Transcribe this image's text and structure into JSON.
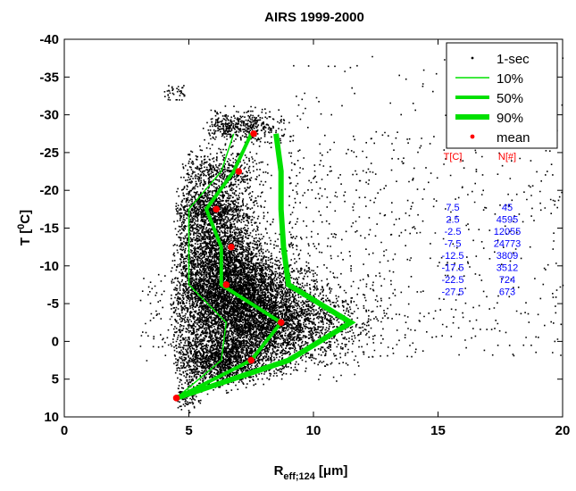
{
  "chart_data": {
    "type": "scatter",
    "title": "AIRS 1999-2000",
    "xlabel": {
      "main": "R",
      "sub": "eff;124",
      "unit": "[μm]"
    },
    "ylabel": {
      "main": "T [",
      "sup": "0",
      "end": "C]"
    },
    "xlim": [
      0,
      20
    ],
    "ylim": [
      10,
      -40
    ],
    "y_reversed": true,
    "x_ticks": [
      "0",
      "5",
      "10",
      "15",
      "20"
    ],
    "y_ticks": [
      "-40",
      "-35",
      "-30",
      "-25",
      "-20",
      "-15",
      "-10",
      "-5",
      "0",
      "5",
      "10"
    ],
    "grid": false,
    "legend_position": "top-right",
    "legend": [
      {
        "label": "1-sec",
        "style": "dot",
        "color": "#000000"
      },
      {
        "label": "10%",
        "style": "line",
        "color": "#00e000",
        "width": 1.5
      },
      {
        "label": "50%",
        "style": "line",
        "color": "#00e000",
        "width": 4
      },
      {
        "label": "90%",
        "style": "line",
        "color": "#00e000",
        "width": 6
      },
      {
        "label": "mean",
        "style": "dot",
        "color": "#ff0000"
      }
    ],
    "series": [
      {
        "name": "10%",
        "color": "#00e000",
        "width": 1.5,
        "points": [
          [
            4.5,
            7.5
          ],
          [
            6.3,
            2.5
          ],
          [
            6.5,
            -2.5
          ],
          [
            5.0,
            -7.5
          ],
          [
            5.0,
            -12.5
          ],
          [
            5.0,
            -17.5
          ],
          [
            6.3,
            -22.5
          ],
          [
            6.8,
            -27.5
          ]
        ]
      },
      {
        "name": "50%",
        "color": "#00e000",
        "width": 4,
        "points": [
          [
            4.5,
            7.5
          ],
          [
            7.5,
            2.5
          ],
          [
            8.7,
            -2.5
          ],
          [
            6.3,
            -7.5
          ],
          [
            6.3,
            -12.5
          ],
          [
            5.7,
            -17.5
          ],
          [
            6.8,
            -22.5
          ],
          [
            7.5,
            -27.5
          ]
        ]
      },
      {
        "name": "90%",
        "color": "#00e000",
        "width": 6,
        "points": [
          [
            4.5,
            7.5
          ],
          [
            9.0,
            2.5
          ],
          [
            11.5,
            -2.5
          ],
          [
            9.0,
            -7.5
          ],
          [
            8.8,
            -12.5
          ],
          [
            8.7,
            -17.5
          ],
          [
            8.7,
            -22.5
          ],
          [
            8.5,
            -27.5
          ]
        ]
      },
      {
        "name": "mean",
        "color": "#ff0000",
        "points": [
          [
            4.5,
            7.5
          ],
          [
            7.5,
            2.5
          ],
          [
            8.7,
            -2.5
          ],
          [
            6.5,
            -7.5
          ],
          [
            6.7,
            -12.5
          ],
          [
            6.1,
            -17.5
          ],
          [
            7.0,
            -22.5
          ],
          [
            7.6,
            -27.5
          ]
        ]
      }
    ],
    "table": {
      "headers": [
        "T[C]",
        "N[#]"
      ],
      "header_color": "#ff0000",
      "value_color": "#0000ff",
      "rows": [
        [
          "7.5",
          "45"
        ],
        [
          "2.5",
          "4595"
        ],
        [
          "-2.5",
          "12055"
        ],
        [
          "-7.5",
          "24773"
        ],
        [
          "-12.5",
          "3809"
        ],
        [
          "-17.5",
          "3512"
        ],
        [
          "-22.5",
          "724"
        ],
        [
          "-27.5",
          "673"
        ]
      ]
    }
  }
}
